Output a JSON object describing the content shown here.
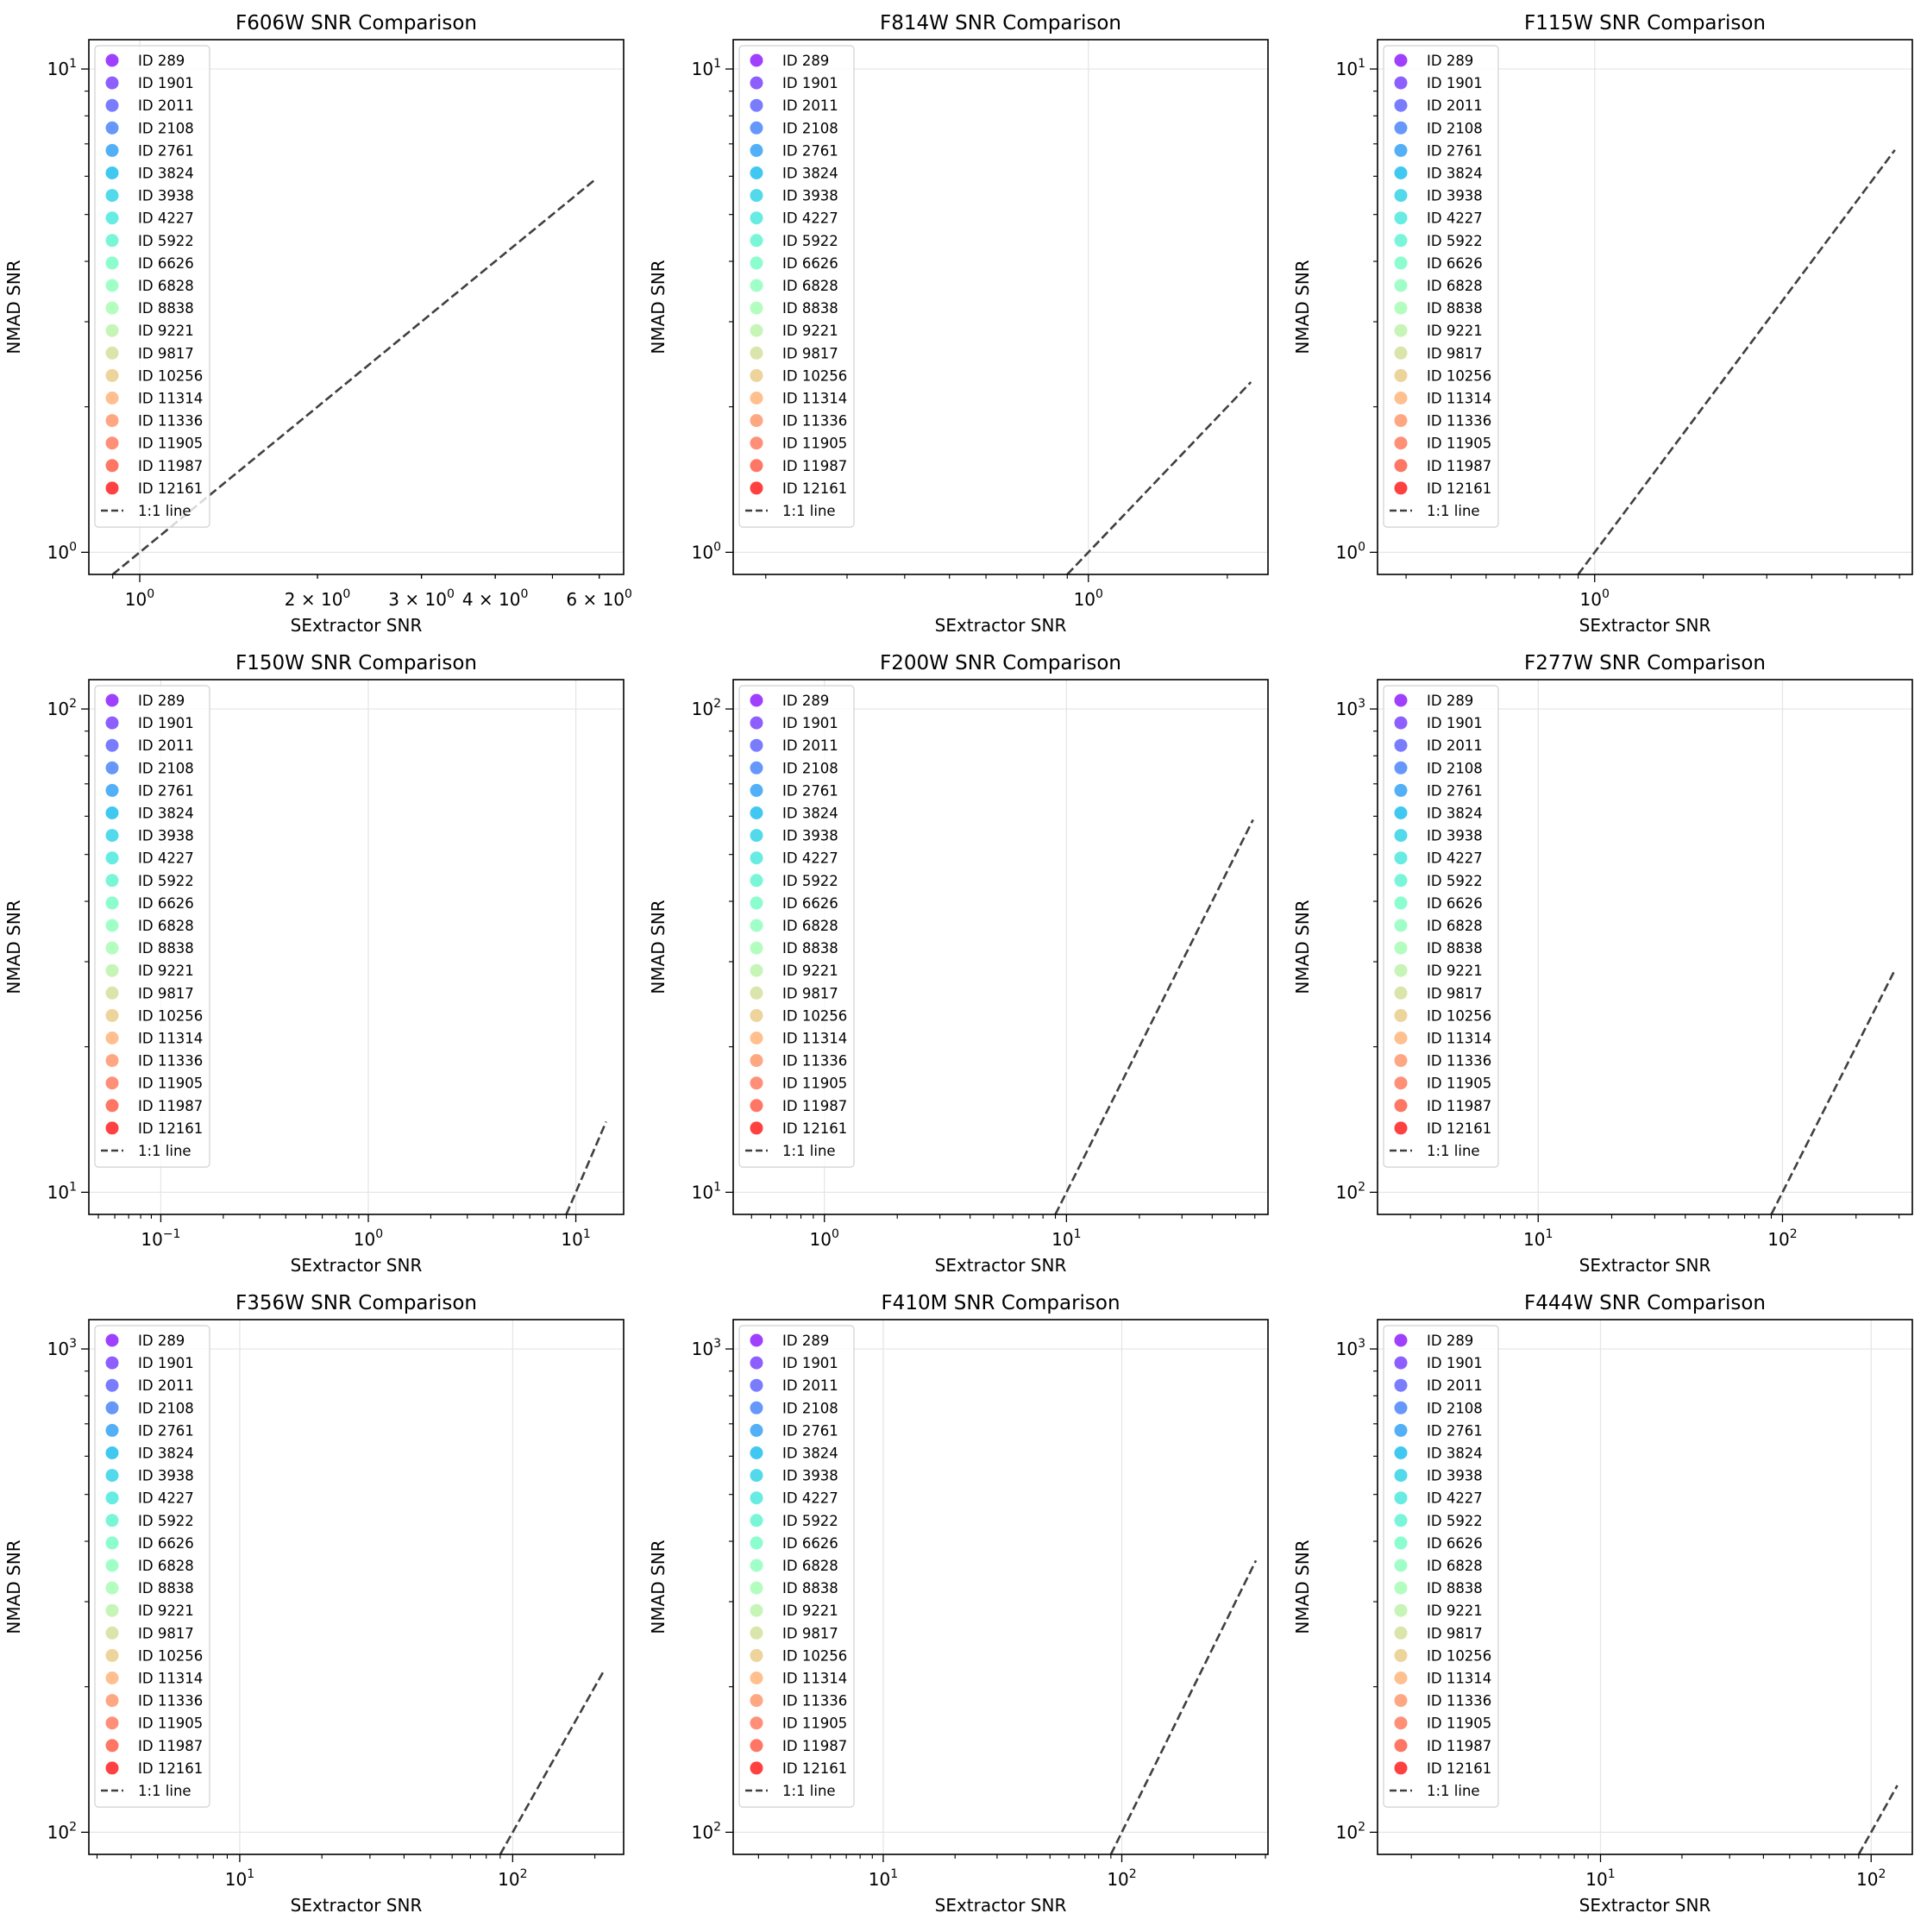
{
  "colors": {
    "ids": [
      "#8000ff",
      "#6629fe",
      "#4c50fc",
      "#3176f8",
      "#1996f3",
      "#00b5eb",
      "#1acee3",
      "#33e5d8",
      "#4cf2cb",
      "#66fcbd",
      "#80ffb4",
      "#9afcaa",
      "#b3f29f",
      "#ccdc8e",
      "#e6c67a",
      "#ffaa6a",
      "#ff8a5a",
      "#ff6a49",
      "#ff4930",
      "#ff0000"
    ],
    "line": "#404040",
    "grid": "#e6e6e6"
  },
  "chart_data": [
    {
      "type": "scatter",
      "title": "F606W SNR Comparison",
      "xlabel": "SExtractor SNR",
      "ylabel": "NMAD SNR",
      "xscale": "log",
      "yscale": "log",
      "xlim": [
        0.82,
        6.6
      ],
      "ylim": [
        0.9,
        11.5
      ],
      "xticks": [
        {
          "v": 1,
          "label": "10",
          "exp": "0",
          "major": true
        },
        {
          "v": 2,
          "label": "2 × 10",
          "exp": "0",
          "major": false
        },
        {
          "v": 3,
          "label": "3 × 10",
          "exp": "0",
          "major": false
        },
        {
          "v": 4,
          "label": "4 × 10",
          "exp": "0",
          "major": false
        },
        {
          "v": 6,
          "label": "6 × 10",
          "exp": "0",
          "major": false
        }
      ],
      "yticks": [
        {
          "v": 1,
          "label": "10",
          "exp": "0"
        },
        {
          "v": 10,
          "label": "10",
          "exp": "1"
        }
      ],
      "ref_line": {
        "x": [
          0.9,
          5.9
        ],
        "y": [
          0.9,
          5.9
        ]
      },
      "grid": true,
      "legend": "upper left"
    },
    {
      "type": "scatter",
      "title": "F814W SNR Comparison",
      "xlabel": "SExtractor SNR",
      "ylabel": "NMAD SNR",
      "xscale": "log",
      "yscale": "log",
      "xlim": [
        0.17,
        2.45
      ],
      "ylim": [
        0.9,
        11.5
      ],
      "xticks": [
        {
          "v": 1,
          "label": "10",
          "exp": "0",
          "major": true
        }
      ],
      "yticks": [
        {
          "v": 1,
          "label": "10",
          "exp": "0"
        },
        {
          "v": 10,
          "label": "10",
          "exp": "1"
        }
      ],
      "ref_line": {
        "x": [
          0.9,
          2.25
        ],
        "y": [
          0.9,
          2.25
        ]
      },
      "grid": true,
      "legend": "upper left"
    },
    {
      "type": "scatter",
      "title": "F115W SNR Comparison",
      "xlabel": "SExtractor SNR",
      "ylabel": "NMAD SNR",
      "xscale": "log",
      "yscale": "log",
      "xlim": [
        0.25,
        7.6
      ],
      "ylim": [
        0.9,
        11.5
      ],
      "xticks": [
        {
          "v": 1,
          "label": "10",
          "exp": "0",
          "major": true
        }
      ],
      "yticks": [
        {
          "v": 1,
          "label": "10",
          "exp": "0"
        },
        {
          "v": 10,
          "label": "10",
          "exp": "1"
        }
      ],
      "ref_line": {
        "x": [
          0.9,
          6.8
        ],
        "y": [
          0.9,
          6.8
        ]
      },
      "grid": true,
      "legend": "upper left"
    },
    {
      "type": "scatter",
      "title": "F150W SNR Comparison",
      "xlabel": "SExtractor SNR",
      "ylabel": "NMAD SNR",
      "xscale": "log",
      "yscale": "log",
      "xlim": [
        0.045,
        17
      ],
      "ylim": [
        9,
        115
      ],
      "xticks": [
        {
          "v": 0.1,
          "label": "10",
          "exp": "−1",
          "major": true
        },
        {
          "v": 1,
          "label": "10",
          "exp": "0",
          "major": true
        },
        {
          "v": 10,
          "label": "10",
          "exp": "1",
          "major": true
        }
      ],
      "yticks": [
        {
          "v": 10,
          "label": "10",
          "exp": "1"
        },
        {
          "v": 100,
          "label": "10",
          "exp": "2"
        }
      ],
      "ref_line": {
        "x": [
          9,
          14
        ],
        "y": [
          9,
          14
        ]
      },
      "grid": true,
      "legend": "upper left"
    },
    {
      "type": "scatter",
      "title": "F200W SNR Comparison",
      "xlabel": "SExtractor SNR",
      "ylabel": "NMAD SNR",
      "xscale": "log",
      "yscale": "log",
      "xlim": [
        0.42,
        68
      ],
      "ylim": [
        9,
        115
      ],
      "xticks": [
        {
          "v": 1,
          "label": "10",
          "exp": "0",
          "major": true
        },
        {
          "v": 10,
          "label": "10",
          "exp": "1",
          "major": true
        }
      ],
      "yticks": [
        {
          "v": 10,
          "label": "10",
          "exp": "1"
        },
        {
          "v": 100,
          "label": "10",
          "exp": "2"
        }
      ],
      "ref_line": {
        "x": [
          9,
          59
        ],
        "y": [
          9,
          59
        ]
      },
      "grid": true,
      "legend": "upper left"
    },
    {
      "type": "scatter",
      "title": "F277W SNR Comparison",
      "xlabel": "SExtractor SNR",
      "ylabel": "NMAD SNR",
      "xscale": "log",
      "yscale": "log",
      "xlim": [
        2.2,
        340
      ],
      "ylim": [
        90,
        1150
      ],
      "xticks": [
        {
          "v": 10,
          "label": "10",
          "exp": "1",
          "major": true
        },
        {
          "v": 100,
          "label": "10",
          "exp": "2",
          "major": true
        }
      ],
      "yticks": [
        {
          "v": 100,
          "label": "10",
          "exp": "2"
        },
        {
          "v": 1000,
          "label": "10",
          "exp": "3"
        }
      ],
      "ref_line": {
        "x": [
          90,
          290
        ],
        "y": [
          90,
          290
        ]
      },
      "grid": true,
      "legend": "upper left"
    },
    {
      "type": "scatter",
      "title": "F356W SNR Comparison",
      "xlabel": "SExtractor SNR",
      "ylabel": "NMAD SNR",
      "xscale": "log",
      "yscale": "log",
      "xlim": [
        2.8,
        255
      ],
      "ylim": [
        90,
        1150
      ],
      "xticks": [
        {
          "v": 10,
          "label": "10",
          "exp": "1",
          "major": true
        },
        {
          "v": 100,
          "label": "10",
          "exp": "2",
          "major": true
        }
      ],
      "yticks": [
        {
          "v": 100,
          "label": "10",
          "exp": "2"
        },
        {
          "v": 1000,
          "label": "10",
          "exp": "3"
        }
      ],
      "ref_line": {
        "x": [
          90,
          215
        ],
        "y": [
          90,
          215
        ]
      },
      "grid": true,
      "legend": "upper left"
    },
    {
      "type": "scatter",
      "title": "F410M SNR Comparison",
      "xlabel": "SExtractor SNR",
      "ylabel": "NMAD SNR",
      "xscale": "log",
      "yscale": "log",
      "xlim": [
        2.35,
        410
      ],
      "ylim": [
        90,
        1150
      ],
      "xticks": [
        {
          "v": 10,
          "label": "10",
          "exp": "1",
          "major": true
        },
        {
          "v": 100,
          "label": "10",
          "exp": "2",
          "major": true
        }
      ],
      "yticks": [
        {
          "v": 100,
          "label": "10",
          "exp": "2"
        },
        {
          "v": 1000,
          "label": "10",
          "exp": "3"
        }
      ],
      "ref_line": {
        "x": [
          90,
          365
        ],
        "y": [
          90,
          365
        ]
      },
      "grid": true,
      "legend": "upper left"
    },
    {
      "type": "scatter",
      "title": "F444W SNR Comparison",
      "xlabel": "SExtractor SNR",
      "ylabel": "NMAD SNR",
      "xscale": "log",
      "yscale": "log",
      "xlim": [
        1.5,
        142
      ],
      "ylim": [
        90,
        1150
      ],
      "xticks": [
        {
          "v": 10,
          "label": "10",
          "exp": "1",
          "major": true
        },
        {
          "v": 100,
          "label": "10",
          "exp": "2",
          "major": true
        }
      ],
      "yticks": [
        {
          "v": 100,
          "label": "10",
          "exp": "2"
        },
        {
          "v": 1000,
          "label": "10",
          "exp": "3"
        }
      ],
      "ref_line": {
        "x": [
          90,
          125
        ],
        "y": [
          90,
          125
        ]
      },
      "grid": true,
      "legend": "upper left"
    }
  ],
  "legend": {
    "entries": [
      "ID 289",
      "ID 1901",
      "ID 2011",
      "ID 2108",
      "ID 2761",
      "ID 3824",
      "ID 3938",
      "ID 4227",
      "ID 5922",
      "ID 6626",
      "ID 6828",
      "ID 8838",
      "ID 9221",
      "ID 9817",
      "ID 10256",
      "ID 11314",
      "ID 11336",
      "ID 11905",
      "ID 11987",
      "ID 12161"
    ],
    "line_label": "1:1 line"
  }
}
